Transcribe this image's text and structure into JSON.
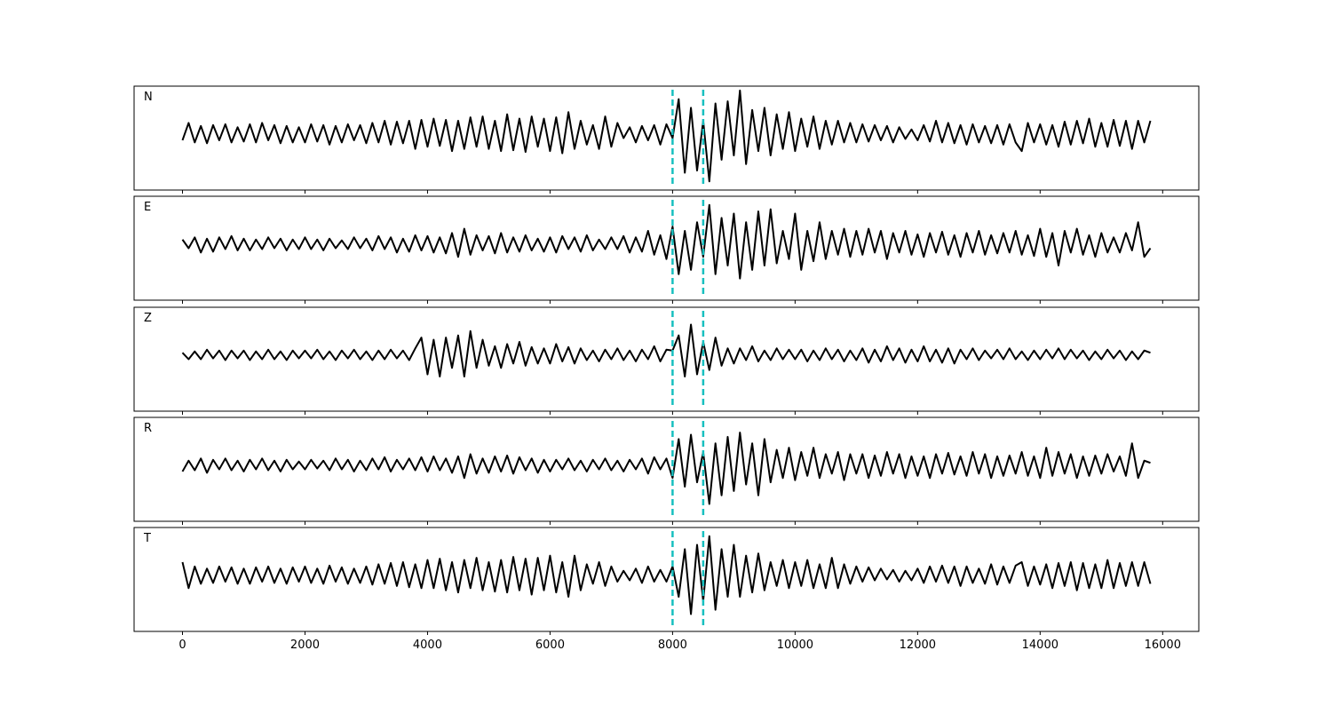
{
  "chart_data": {
    "type": "line",
    "x": [
      0,
      100,
      200,
      300,
      400,
      500,
      600,
      700,
      800,
      900,
      1000,
      1100,
      1200,
      1300,
      1400,
      1500,
      1600,
      1700,
      1800,
      1900,
      2000,
      2100,
      2200,
      2300,
      2400,
      2500,
      2600,
      2700,
      2800,
      2900,
      3000,
      3100,
      3200,
      3300,
      3400,
      3500,
      3600,
      3700,
      3800,
      3900,
      4000,
      4100,
      4200,
      4300,
      4400,
      4500,
      4600,
      4700,
      4800,
      4900,
      5000,
      5100,
      5200,
      5300,
      5400,
      5500,
      5600,
      5700,
      5800,
      5900,
      6000,
      6100,
      6200,
      6300,
      6400,
      6500,
      6600,
      6700,
      6800,
      6900,
      7000,
      7100,
      7200,
      7300,
      7400,
      7500,
      7600,
      7700,
      7800,
      7900,
      8000,
      8100,
      8200,
      8300,
      8400,
      8500,
      8600,
      8700,
      8800,
      8900,
      9000,
      9100,
      9200,
      9300,
      9400,
      9500,
      9600,
      9700,
      9800,
      9900,
      10000,
      10100,
      10200,
      10300,
      10400,
      10500,
      10600,
      10700,
      10800,
      10900,
      11000,
      11100,
      11200,
      11300,
      11400,
      11500,
      11600,
      11700,
      11800,
      11900,
      12000,
      12100,
      12200,
      12300,
      12400,
      12500,
      12600,
      12700,
      12800,
      12900,
      13000,
      13100,
      13200,
      13300,
      13400,
      13500,
      13600,
      13700,
      13800,
      13900,
      14000,
      14100,
      14200,
      14300,
      14400,
      14500,
      14600,
      14700,
      14800,
      14900,
      15000,
      15100,
      15200,
      15300,
      15400,
      15500,
      15600,
      15700,
      15800
    ],
    "series": [
      {
        "name": "N",
        "color": "#000000",
        "values": [
          -0.15,
          0.25,
          -0.2,
          0.18,
          -0.22,
          0.2,
          -0.15,
          0.22,
          -0.2,
          0.15,
          -0.18,
          0.22,
          -0.2,
          0.25,
          -0.15,
          0.2,
          -0.22,
          0.18,
          -0.2,
          0.15,
          -0.2,
          0.22,
          -0.18,
          0.2,
          -0.25,
          0.18,
          -0.2,
          0.22,
          -0.15,
          0.2,
          -0.22,
          0.25,
          -0.2,
          0.3,
          -0.25,
          0.28,
          -0.22,
          0.3,
          -0.35,
          0.32,
          -0.3,
          0.35,
          -0.28,
          0.32,
          -0.4,
          0.3,
          -0.35,
          0.38,
          -0.3,
          0.4,
          -0.35,
          0.3,
          -0.4,
          0.45,
          -0.38,
          0.35,
          -0.42,
          0.4,
          -0.3,
          0.35,
          -0.4,
          0.38,
          -0.45,
          0.5,
          -0.35,
          0.3,
          -0.25,
          0.2,
          -0.35,
          0.4,
          -0.3,
          0.25,
          -0.1,
          0.15,
          -0.2,
          0.18,
          -0.15,
          0.2,
          -0.25,
          0.22,
          -0.1,
          0.8,
          -0.9,
          0.6,
          -0.85,
          0.3,
          -1.1,
          0.7,
          -0.6,
          0.75,
          -0.5,
          1.0,
          -0.7,
          0.55,
          -0.4,
          0.6,
          -0.5,
          0.45,
          -0.35,
          0.5,
          -0.4,
          0.35,
          -0.3,
          0.4,
          -0.35,
          0.3,
          -0.25,
          0.3,
          -0.2,
          0.25,
          -0.2,
          0.22,
          -0.18,
          0.2,
          -0.15,
          0.18,
          -0.2,
          0.15,
          -0.12,
          0.1,
          -0.15,
          0.2,
          -0.18,
          0.3,
          -0.2,
          0.25,
          -0.22,
          0.2,
          -0.25,
          0.22,
          -0.2,
          0.18,
          -0.22,
          0.2,
          -0.25,
          0.22,
          -0.2,
          -0.4,
          0.25,
          -0.2,
          0.22,
          -0.25,
          0.2,
          -0.3,
          0.28,
          -0.25,
          0.3,
          -0.22,
          0.35,
          -0.3,
          0.25,
          -0.3,
          0.32,
          -0.28,
          0.3,
          -0.35,
          0.3,
          -0.2,
          0.3
        ]
      },
      {
        "name": "E",
        "color": "#000000",
        "values": [
          0.1,
          -0.1,
          0.15,
          -0.2,
          0.12,
          -0.18,
          0.15,
          -0.12,
          0.18,
          -0.15,
          0.12,
          -0.15,
          0.1,
          -0.12,
          0.15,
          -0.1,
          0.12,
          -0.15,
          0.1,
          -0.12,
          0.15,
          -0.12,
          0.1,
          -0.15,
          0.12,
          -0.1,
          0.08,
          -0.12,
          0.15,
          -0.1,
          0.12,
          -0.15,
          0.18,
          -0.12,
          0.15,
          -0.2,
          0.12,
          -0.18,
          0.2,
          -0.15,
          0.18,
          -0.2,
          0.15,
          -0.22,
          0.25,
          -0.3,
          0.35,
          -0.25,
          0.2,
          -0.15,
          0.18,
          -0.22,
          0.25,
          -0.2,
          0.15,
          -0.18,
          0.2,
          -0.15,
          0.12,
          -0.18,
          0.15,
          -0.2,
          0.18,
          -0.12,
          0.15,
          -0.18,
          0.2,
          -0.15,
          0.1,
          -0.12,
          0.15,
          -0.12,
          0.18,
          -0.2,
          0.15,
          -0.18,
          0.3,
          -0.25,
          0.2,
          -0.35,
          0.4,
          -0.7,
          0.3,
          -0.6,
          0.5,
          -0.3,
          0.9,
          -0.7,
          0.6,
          -0.5,
          0.7,
          -0.8,
          0.5,
          -0.6,
          0.75,
          -0.5,
          0.8,
          -0.45,
          0.3,
          -0.35,
          0.7,
          -0.6,
          0.3,
          -0.4,
          0.5,
          -0.35,
          0.3,
          -0.25,
          0.35,
          -0.3,
          0.3,
          -0.25,
          0.35,
          -0.2,
          0.3,
          -0.35,
          0.25,
          -0.2,
          0.3,
          -0.25,
          0.22,
          -0.3,
          0.25,
          -0.2,
          0.28,
          -0.25,
          0.2,
          -0.3,
          0.25,
          -0.2,
          0.3,
          -0.25,
          0.2,
          -0.22,
          0.25,
          -0.2,
          0.3,
          -0.25,
          0.2,
          -0.28,
          0.35,
          -0.3,
          0.25,
          -0.5,
          0.3,
          -0.2,
          0.35,
          -0.25,
          0.2,
          -0.3,
          0.25,
          -0.2,
          0.15,
          -0.2,
          0.25,
          -0.15,
          0.5,
          -0.3,
          -0.1
        ]
      },
      {
        "name": "Z",
        "color": "#000000",
        "values": [
          0.05,
          -0.1,
          0.08,
          -0.1,
          0.12,
          -0.08,
          0.1,
          -0.12,
          0.1,
          -0.08,
          0.1,
          -0.12,
          0.08,
          -0.1,
          0.12,
          -0.1,
          0.08,
          -0.12,
          0.1,
          -0.08,
          0.1,
          -0.08,
          0.12,
          -0.1,
          0.08,
          -0.12,
          0.1,
          -0.08,
          0.12,
          -0.1,
          0.08,
          -0.12,
          0.1,
          -0.1,
          0.12,
          -0.08,
          0.1,
          -0.12,
          0.15,
          0.4,
          -0.45,
          0.35,
          -0.5,
          0.4,
          -0.3,
          0.45,
          -0.5,
          0.55,
          -0.3,
          0.35,
          -0.25,
          0.2,
          -0.3,
          0.25,
          -0.2,
          0.3,
          -0.25,
          0.18,
          -0.2,
          0.15,
          -0.2,
          0.25,
          -0.15,
          0.18,
          -0.2,
          0.15,
          -0.12,
          0.1,
          -0.15,
          0.12,
          -0.1,
          0.15,
          -0.12,
          0.1,
          -0.15,
          0.12,
          -0.1,
          0.2,
          -0.15,
          0.12,
          0.1,
          0.45,
          -0.5,
          0.7,
          -0.45,
          0.3,
          -0.35,
          0.4,
          -0.25,
          0.15,
          -0.2,
          0.15,
          -0.12,
          0.2,
          -0.15,
          0.1,
          -0.12,
          0.15,
          -0.1,
          0.12,
          -0.1,
          0.12,
          -0.15,
          0.1,
          -0.12,
          0.15,
          -0.1,
          0.12,
          -0.15,
          0.1,
          -0.12,
          0.15,
          -0.18,
          0.12,
          -0.15,
          0.2,
          -0.12,
          0.15,
          -0.18,
          0.12,
          -0.15,
          0.2,
          -0.15,
          0.12,
          -0.18,
          0.15,
          -0.2,
          0.12,
          -0.1,
          0.15,
          -0.12,
          0.1,
          -0.08,
          0.12,
          -0.1,
          0.15,
          -0.1,
          0.08,
          -0.12,
          0.1,
          -0.1,
          0.12,
          -0.08,
          0.15,
          -0.1,
          0.12,
          -0.08,
          0.1,
          -0.12,
          0.08,
          -0.1,
          0.12,
          -0.08,
          0.1,
          -0.12,
          0.08,
          -0.1,
          0.1,
          0.05
        ]
      },
      {
        "name": "R",
        "color": "#000000",
        "values": [
          -0.15,
          0.1,
          -0.12,
          0.15,
          -0.18,
          0.12,
          -0.1,
          0.15,
          -0.12,
          0.1,
          -0.15,
          0.12,
          -0.1,
          0.15,
          -0.12,
          0.1,
          -0.15,
          0.12,
          -0.1,
          0.08,
          -0.1,
          0.12,
          -0.08,
          0.1,
          -0.12,
          0.15,
          -0.1,
          0.12,
          -0.15,
          0.1,
          -0.12,
          0.15,
          -0.1,
          0.18,
          -0.15,
          0.12,
          -0.1,
          0.15,
          -0.12,
          0.18,
          -0.15,
          0.2,
          -0.12,
          0.15,
          -0.18,
          0.2,
          -0.3,
          0.25,
          -0.2,
          0.15,
          -0.18,
          0.2,
          -0.15,
          0.22,
          -0.2,
          0.18,
          -0.12,
          0.15,
          -0.18,
          0.12,
          -0.15,
          0.12,
          -0.1,
          0.15,
          -0.12,
          0.1,
          -0.15,
          0.12,
          -0.1,
          0.15,
          -0.12,
          0.1,
          -0.15,
          0.12,
          -0.1,
          0.15,
          -0.2,
          0.18,
          -0.1,
          0.15,
          -0.3,
          0.6,
          -0.5,
          0.7,
          -0.4,
          0.3,
          -0.9,
          0.5,
          -0.7,
          0.65,
          -0.6,
          0.75,
          -0.45,
          0.5,
          -0.7,
          0.6,
          -0.4,
          0.35,
          -0.3,
          0.4,
          -0.35,
          0.3,
          -0.25,
          0.4,
          -0.3,
          0.25,
          -0.2,
          0.3,
          -0.35,
          0.25,
          -0.2,
          0.25,
          -0.3,
          0.22,
          -0.25,
          0.3,
          -0.2,
          0.25,
          -0.3,
          0.2,
          -0.25,
          0.2,
          -0.3,
          0.25,
          -0.2,
          0.28,
          -0.22,
          0.2,
          -0.25,
          0.3,
          -0.2,
          0.25,
          -0.3,
          0.2,
          -0.25,
          0.22,
          -0.2,
          0.3,
          -0.25,
          0.2,
          -0.3,
          0.4,
          -0.25,
          0.3,
          -0.2,
          0.25,
          -0.3,
          0.2,
          -0.25,
          0.22,
          -0.2,
          0.25,
          -0.15,
          0.2,
          -0.25,
          0.5,
          -0.3,
          0.1,
          0.05
        ]
      },
      {
        "name": "T",
        "color": "#000000",
        "values": [
          0.3,
          -0.3,
          0.2,
          -0.2,
          0.15,
          -0.18,
          0.2,
          -0.15,
          0.18,
          -0.2,
          0.15,
          -0.2,
          0.18,
          -0.15,
          0.2,
          -0.18,
          0.15,
          -0.2,
          0.18,
          -0.15,
          0.2,
          -0.18,
          0.15,
          -0.2,
          0.22,
          -0.15,
          0.18,
          -0.2,
          0.15,
          -0.18,
          0.2,
          -0.22,
          0.25,
          -0.2,
          0.28,
          -0.25,
          0.3,
          -0.28,
          0.25,
          -0.3,
          0.35,
          -0.3,
          0.38,
          -0.35,
          0.3,
          -0.4,
          0.35,
          -0.3,
          0.4,
          -0.35,
          0.3,
          -0.38,
          0.35,
          -0.4,
          0.42,
          -0.35,
          0.38,
          -0.45,
          0.4,
          -0.35,
          0.45,
          -0.4,
          0.3,
          -0.5,
          0.45,
          -0.35,
          0.25,
          -0.2,
          0.3,
          -0.25,
          0.2,
          -0.15,
          0.1,
          -0.12,
          0.15,
          -0.18,
          0.2,
          -0.15,
          0.12,
          -0.15,
          0.2,
          -0.5,
          0.6,
          -0.9,
          0.7,
          -0.6,
          0.9,
          -0.8,
          0.6,
          -0.5,
          0.7,
          -0.5,
          0.45,
          -0.4,
          0.5,
          -0.35,
          0.3,
          -0.25,
          0.35,
          -0.3,
          0.3,
          -0.25,
          0.35,
          -0.3,
          0.25,
          -0.3,
          0.4,
          -0.3,
          0.25,
          -0.2,
          0.2,
          -0.15,
          0.18,
          -0.12,
          0.15,
          -0.1,
          0.12,
          -0.15,
          0.1,
          -0.12,
          0.15,
          -0.18,
          0.2,
          -0.15,
          0.22,
          -0.18,
          0.2,
          -0.25,
          0.2,
          -0.18,
          0.15,
          -0.2,
          0.25,
          -0.22,
          0.2,
          -0.18,
          0.22,
          0.3,
          -0.25,
          0.2,
          -0.22,
          0.25,
          -0.3,
          0.28,
          -0.25,
          0.3,
          -0.35,
          0.28,
          -0.3,
          0.25,
          -0.3,
          0.35,
          -0.3,
          0.28,
          -0.25,
          0.3,
          -0.25,
          0.3,
          -0.2
        ]
      }
    ],
    "xlim": [
      -790,
      16590
    ],
    "xticks": [
      0,
      2000,
      4000,
      6000,
      8000,
      10000,
      12000,
      14000,
      16000
    ],
    "ylim": [
      -1.3,
      1.1
    ],
    "vlines": [
      8000,
      8500
    ],
    "vline_color": "#17bfbf"
  }
}
